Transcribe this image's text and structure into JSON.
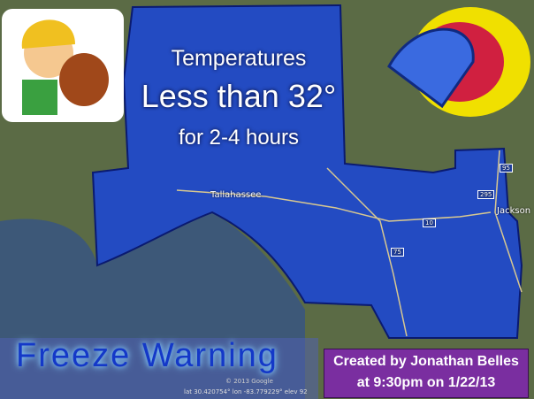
{
  "headline": {
    "line1": "Temperatures",
    "line2": "Less than 32°",
    "line3": "for 2-4 hours"
  },
  "warning_title": "Freeze Warning",
  "credit": {
    "line1": "Created by Jonathan Belles",
    "line2": "at 9:30pm on 1/22/13"
  },
  "cities": [
    "Tallahassee",
    "Jackson"
  ],
  "interstates": [
    "10",
    "75",
    "95",
    "295"
  ],
  "map_footer": {
    "copyright": "© 2013 Google",
    "coordinates": "lat 30.420754° lon -83.779229° elev 92"
  },
  "colors": {
    "warning_area": "#1a45d8",
    "credit_box": "#7a2ea0",
    "water": "#3d5878",
    "land": "#5b6b45"
  }
}
